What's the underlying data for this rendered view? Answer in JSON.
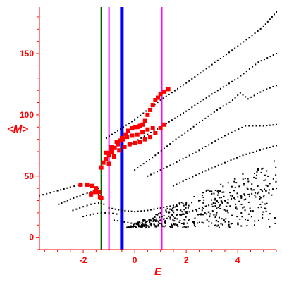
{
  "chart_data": {
    "type": "scatter",
    "xlabel": "E",
    "ylabel": "<M>",
    "xlim": [
      -3.7,
      5.5
    ],
    "ylim": [
      -10,
      188
    ],
    "x_ticks": [
      {
        "value": -2,
        "label": "-2"
      },
      {
        "value": 0,
        "label": "0"
      },
      {
        "value": 2,
        "label": "2"
      },
      {
        "value": 4,
        "label": "4"
      }
    ],
    "y_ticks": [
      {
        "value": 0,
        "label": "0"
      },
      {
        "value": 50,
        "label": "50"
      },
      {
        "value": 100,
        "label": "100"
      },
      {
        "value": 150,
        "label": "150"
      }
    ],
    "grid": false,
    "axis_color": "#ff0000",
    "vertical_lines": [
      {
        "x": -1.3,
        "color": "#006400"
      },
      {
        "x": -1.0,
        "color": "#ff00ff"
      },
      {
        "x": -0.5,
        "color": "#0000ff",
        "emphasis": "thick"
      },
      {
        "x": 1.05,
        "color": "#ff00ff"
      }
    ],
    "series": [
      {
        "color": "#000000",
        "marker": "small-dot",
        "branches": [
          {
            "points": [
              [
                -3.7,
                34
              ],
              [
                -3.0,
                38
              ],
              [
                -2.5,
                41
              ],
              [
                -2.2,
                42.5
              ],
              [
                -1.9,
                43
              ],
              [
                -1.6,
                42
              ],
              [
                -1.4,
                40
              ]
            ]
          },
          {
            "points": [
              [
                -2.95,
                27
              ],
              [
                -2.5,
                31
              ],
              [
                -2.0,
                35
              ],
              [
                -1.7,
                37
              ],
              [
                -1.5,
                36
              ],
              [
                -1.3,
                34
              ]
            ]
          },
          {
            "points": [
              [
                -2.4,
                22
              ],
              [
                -2.0,
                25
              ],
              [
                -1.7,
                27
              ],
              [
                -1.4,
                28
              ],
              [
                -1.2,
                27
              ]
            ]
          },
          {
            "points": [
              [
                -2.0,
                17
              ],
              [
                -1.6,
                19
              ],
              [
                -1.3,
                20
              ],
              [
                -1.0,
                20
              ],
              [
                -0.7,
                19
              ]
            ]
          },
          {
            "points": [
              [
                -1.1,
                81
              ],
              [
                0.0,
                96
              ],
              [
                1.0,
                112
              ],
              [
                2.0,
                126
              ],
              [
                3.0,
                141
              ],
              [
                4.0,
                156
              ],
              [
                5.0,
                172
              ],
              [
                5.5,
                184
              ]
            ]
          },
          {
            "points": [
              [
                -0.6,
                71
              ],
              [
                0.0,
                78
              ],
              [
                1.0,
                90
              ],
              [
                2.0,
                103
              ],
              [
                3.0,
                117
              ],
              [
                4.0,
                130
              ],
              [
                4.8,
                143
              ],
              [
                5.5,
                150
              ]
            ]
          },
          {
            "points": [
              [
                0.0,
                55
              ],
              [
                0.8,
                67
              ],
              [
                1.6,
                80
              ],
              [
                2.4,
                92
              ],
              [
                3.2,
                104
              ],
              [
                3.8,
                112
              ],
              [
                4.1,
                118
              ],
              [
                4.4,
                113
              ],
              [
                5.0,
                120
              ],
              [
                5.5,
                124
              ]
            ]
          },
          {
            "points": [
              [
                0.5,
                50
              ],
              [
                1.5,
                60
              ],
              [
                2.5,
                71
              ],
              [
                3.5,
                83
              ],
              [
                4.3,
                91
              ],
              [
                5.0,
                91
              ],
              [
                5.5,
                92
              ]
            ]
          },
          {
            "points": [
              [
                1.5,
                42
              ],
              [
                2.5,
                52
              ],
              [
                3.5,
                61
              ],
              [
                4.2,
                67
              ],
              [
                5.0,
                72
              ],
              [
                5.5,
                75
              ]
            ]
          },
          {
            "points": [
              [
                -1.0,
                24
              ],
              [
                -0.5,
                22
              ],
              [
                0.0,
                21
              ],
              [
                0.5,
                22
              ],
              [
                1.0,
                24
              ],
              [
                1.5,
                26
              ],
              [
                2.0,
                28
              ]
            ]
          },
          {
            "points": [
              [
                -0.8,
                14
              ],
              [
                0.0,
                11
              ],
              [
                1.0,
                14
              ],
              [
                2.0,
                20
              ],
              [
                3.0,
                27
              ],
              [
                4.0,
                33
              ],
              [
                5.5,
                40
              ]
            ]
          }
        ],
        "scatter_region": {
          "x": [
            -0.3,
            5.5
          ],
          "y": [
            8,
            65
          ]
        }
      },
      {
        "color": "#ff0000",
        "marker": "square",
        "points": [
          [
            -2.1,
            43
          ],
          [
            -1.85,
            43
          ],
          [
            -1.65,
            42
          ],
          [
            -1.5,
            40
          ],
          [
            -1.4,
            37
          ],
          [
            -1.35,
            33
          ],
          [
            -1.3,
            32
          ],
          [
            -1.55,
            37
          ],
          [
            -1.7,
            35
          ],
          [
            -1.3,
            57
          ],
          [
            -1.22,
            61
          ],
          [
            -1.12,
            64
          ],
          [
            -1.0,
            67
          ],
          [
            -0.9,
            70
          ],
          [
            -0.78,
            73
          ],
          [
            -0.66,
            76
          ],
          [
            -0.55,
            79
          ],
          [
            -0.45,
            80
          ],
          [
            -0.35,
            84
          ],
          [
            -0.25,
            87
          ],
          [
            -0.1,
            89
          ],
          [
            0.0,
            90
          ],
          [
            0.1,
            90
          ],
          [
            0.2,
            91
          ],
          [
            0.3,
            92
          ],
          [
            0.4,
            95
          ],
          [
            0.5,
            100
          ],
          [
            0.6,
            104
          ],
          [
            0.7,
            108
          ],
          [
            0.8,
            112
          ],
          [
            0.9,
            114
          ],
          [
            1.0,
            117
          ],
          [
            1.15,
            119
          ],
          [
            1.3,
            121
          ],
          [
            -1.1,
            69
          ],
          [
            -0.9,
            74
          ],
          [
            -0.7,
            78
          ],
          [
            -0.5,
            81
          ],
          [
            -0.3,
            82
          ],
          [
            -0.1,
            83
          ],
          [
            0.1,
            84
          ],
          [
            0.3,
            86
          ],
          [
            0.5,
            88
          ],
          [
            0.7,
            89
          ],
          [
            -1.0,
            60
          ],
          [
            -0.8,
            66
          ],
          [
            -0.6,
            71
          ],
          [
            -0.4,
            74
          ],
          [
            -0.2,
            76
          ],
          [
            0.0,
            77
          ],
          [
            0.2,
            78
          ],
          [
            0.4,
            80
          ],
          [
            0.6,
            82
          ],
          [
            0.8,
            85
          ],
          [
            1.0,
            89
          ],
          [
            1.15,
            92
          ]
        ]
      }
    ]
  }
}
